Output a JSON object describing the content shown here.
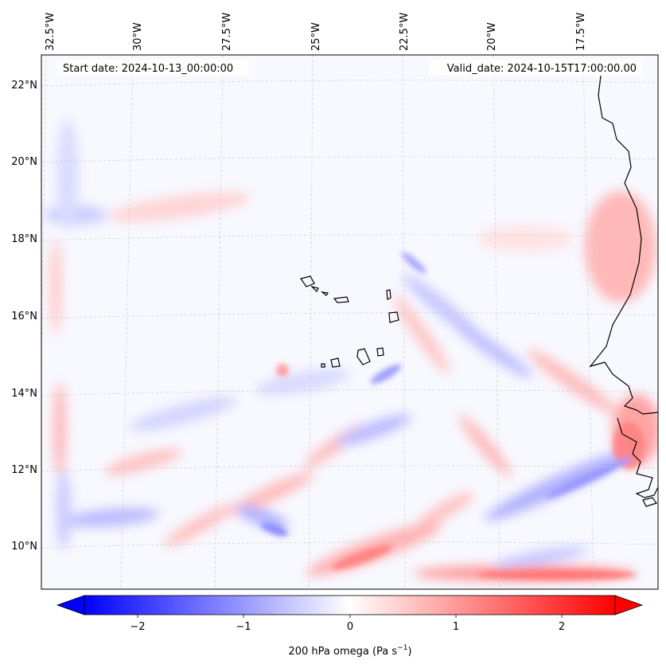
{
  "map": {
    "start_date": "Start date: 2024-10-13_00:00:00",
    "valid_date": "Valid_date: 2024-10-15T17:00:00.00",
    "lon_labels": [
      "32.5°W",
      "30°W",
      "27.5°W",
      "25°W",
      "22.5°W",
      "20°W",
      "17.5°W"
    ],
    "lat_labels": [
      "22°N",
      "20°N",
      "18°N",
      "16°N",
      "14°N",
      "12°N",
      "10°N"
    ],
    "coastline_color": "#000000",
    "gridline_color": "#c8c8c8"
  },
  "colorbar": {
    "ticks": [
      "−2",
      "−1",
      "0",
      "1",
      "2"
    ],
    "tick_values": [
      -2,
      -1,
      0,
      1,
      2
    ],
    "range": [
      -2.7,
      2.7
    ],
    "label_main": "200 hPa omega (Pa s",
    "label_sup": "−1",
    "label_end": ")",
    "colormap": "bwr",
    "extend": "both",
    "min_color": "#0000ff",
    "mid_color": "#ffffff",
    "max_color": "#ff0000"
  }
}
